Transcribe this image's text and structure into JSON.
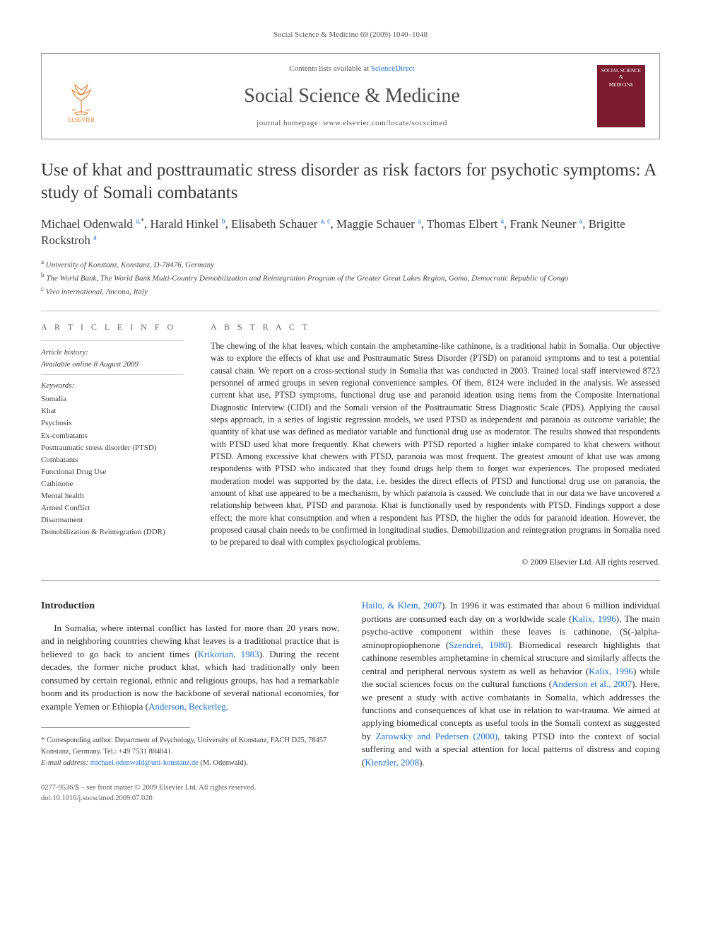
{
  "running_head": "Social Science & Medicine 69 (2009) 1040–1048",
  "header": {
    "elsevier": "ELSEVIER",
    "contents_prefix": "Contents lists available at ",
    "contents_link": "ScienceDirect",
    "journal": "Social Science & Medicine",
    "homepage_prefix": "journal homepage: ",
    "homepage": "www.elsevier.com/locate/socscimed",
    "cover_label_1": "SOCIAL SCIENCE &",
    "cover_label_2": "MEDICINE"
  },
  "article": {
    "title": "Use of khat and posttraumatic stress disorder as risk factors for psychotic symptoms: A study of Somali combatants",
    "authors_html": "Michael Odenwald <sup>a,</sup><sup class=\"star\">*</sup>, Harald Hinkel <sup>b</sup>, Elisabeth Schauer <sup>a, c</sup>, Maggie Schauer <sup>a</sup>, Thomas Elbert <sup>a</sup>, Frank Neuner <sup>a</sup>, Brigitte Rockstroh <sup>a</sup>",
    "affiliations": [
      {
        "sup": "a",
        "text": "University of Konstanz, Konstanz, D-78476, Germany"
      },
      {
        "sup": "b",
        "text": "The World Bank, The World Bank Multi-Country Demobilization and Reintegration Program of the Greater Great Lakes Region, Goma, Democratic Republic of Congo"
      },
      {
        "sup": "c",
        "text": "Vivo international, Ancona, Italy"
      }
    ]
  },
  "info": {
    "label": "A R T I C L E   I N F O",
    "history_label": "Article history:",
    "history_line": "Available online 8 August 2009",
    "keywords_label": "Keywords:",
    "keywords": [
      "Somalia",
      "Khat",
      "Psychosis",
      "Ex-combatants",
      "Posttraumatic stress disorder (PTSD)",
      "Combatants",
      "Functional Drug Use",
      "Cathinone",
      "Mental health",
      "Armed Conflict",
      "Disarmament",
      "Demobilization & Reintegration (DDR)"
    ]
  },
  "abstract": {
    "label": "A B S T R A C T",
    "text": "The chewing of the khat leaves, which contain the amphetamine-like cathinone, is a traditional habit in Somalia. Our objective was to explore the effects of khat use and Posttraumatic Stress Disorder (PTSD) on paranoid symptoms and to test a potential causal chain. We report on a cross-sectional study in Somalia that was conducted in 2003. Trained local staff interviewed 8723 personnel of armed groups in seven regional convenience samples. Of them, 8124 were included in the analysis. We assessed current khat use, PTSD symptoms, functional drug use and paranoid ideation using items from the Composite International Diagnostic Interview (CIDI) and the Somali version of the Posttraumatic Stress Diagnostic Scale (PDS). Applying the causal steps approach, in a series of logistic regression models, we used PTSD as independent and paranoia as outcome variable; the quantity of khat use was defined as mediator variable and functional drug use as moderator. The results showed that respondents with PTSD used khat more frequently. Khat chewers with PTSD reported a higher intake compared to khat chewers without PTSD. Among excessive khat chewers with PTSD, paranoia was most frequent. The greatest amount of khat use was among respondents with PTSD who indicated that they found drugs help them to forget war experiences. The proposed mediated moderation model was supported by the data, i.e. besides the direct effects of PTSD and functional drug use on paranoia, the amount of khat use appeared to be a mechanism, by which paranoia is caused. We conclude that in our data we have uncovered a relationship between khat, PTSD and paranoia. Khat is functionally used by respondents with PTSD. Findings support a dose effect; the more khat consumption and when a respondent has PTSD, the higher the odds for paranoid ideation. However, the proposed causal chain needs to be confirmed in longitudinal studies. Demobilization and reintegration programs in Somalia need to be prepared to deal with complex psychological problems.",
    "copyright": "© 2009 Elsevier Ltd. All rights reserved."
  },
  "body": {
    "intro_heading": "Introduction",
    "col1_html": "<p>In Somalia, where internal conflict has lasted for more than 20 years now, and in neighboring countries chewing khat leaves is a traditional practice that is believed to go back to ancient times (<a>Krikorian, 1983</a>). During the recent decades, the former niche product khat, which had traditionally only been consumed by certain regional, ethnic and religious groups, has had a remarkable boom and its production is now the backbone of several national economies, for example Yemen or Ethiopia (<a>Anderson, Beckerleg,</a></p>",
    "col2_html": "<a>Hailu, & Klein, 2007</a>). In 1996 it was estimated that about 6 million individual portions are consumed each day on a worldwide scale (<a>Kalix, 1996</a>). The main psycho-active component within these leaves is cathinone, (S(-)alpha-aminopropiophenone (<a>Szendrei, 1980</a>). Biomedical research highlights that cathinone resembles amphetamine in chemical structure and similarly affects the central and peripheral nervous system as well as behavior (<a>Kalix, 1996</a>) while the social sciences focus on the cultural functions (<a>Anderson et al., 2007</a>). Here, we present a study with active combatants in Somalia, which addresses the functions and consequences of khat use in relation to war-trauma. We aimed at applying biomedical concepts as useful tools in the Somali context as suggested by <a>Zarowsky and Pedersen (2000)</a>, taking PTSD into the context of social suffering and with a special attention for local patterns of distress and coping (<a>Kienzler, 2008</a>)."
  },
  "footnotes": {
    "corr": "* Corresponding author. Department of Psychology, University of Konstanz, FACH D25, 78457 Konstanz, Germany. Tel.: +49 7531 884041.",
    "email_label": "E-mail address:",
    "email": "michael.odenwald@uni-konstanz.de",
    "email_suffix": "(M. Odenwald)."
  },
  "bottom": {
    "line1": "0277-9536/$ – see front matter © 2009 Elsevier Ltd. All rights reserved.",
    "line2": "doi:10.1016/j.socscimed.2009.07.020"
  },
  "colors": {
    "link": "#1d6ec9",
    "elsevier_orange": "#e8711c",
    "cover_bg": "#7a1b2e"
  }
}
